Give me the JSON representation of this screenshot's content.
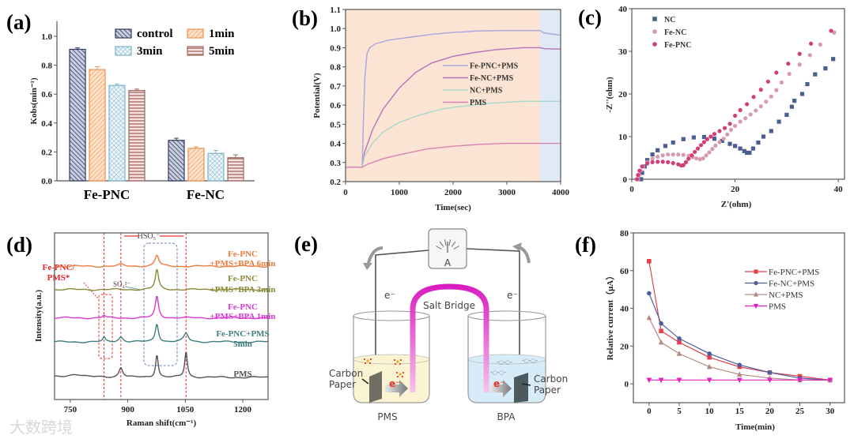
{
  "panel_labels": {
    "a": "(a)",
    "b": "(b)",
    "c": "(c)",
    "d": "(d)",
    "e": "(e)",
    "f": "(f)"
  },
  "watermark": "大数跨境",
  "chart_data": [
    {
      "id": "a",
      "type": "bar",
      "ylabel": "Kobs(min⁻¹)",
      "xlabel": "",
      "categories": [
        "Fe-PNC",
        "Fe-NC"
      ],
      "ylim": [
        0,
        1.1
      ],
      "yticks": [
        0.0,
        0.2,
        0.4,
        0.6,
        0.8,
        1.0
      ],
      "legend": "top-right",
      "series": [
        {
          "name": "control",
          "values": [
            0.91,
            0.28
          ],
          "errors": [
            0.01,
            0.015
          ],
          "color": "#2e3a5c",
          "pattern": "hatch-control"
        },
        {
          "name": "1min",
          "values": [
            0.77,
            0.225
          ],
          "errors": [
            0.02,
            0.01
          ],
          "color": "#ee9350",
          "pattern": "hatch-1min"
        },
        {
          "name": "3min",
          "values": [
            0.66,
            0.19
          ],
          "errors": [
            0.01,
            0.02
          ],
          "color": "#7fb3c9",
          "pattern": "hatch-3min"
        },
        {
          "name": "5min",
          "values": [
            0.625,
            0.16
          ],
          "errors": [
            0.01,
            0.02
          ],
          "color": "#a4665e",
          "pattern": "hatch-5min"
        }
      ]
    },
    {
      "id": "b",
      "type": "line",
      "xlabel": "Time(sec)",
      "ylabel": "Potential(V)",
      "xlim": [
        0,
        4000
      ],
      "ylim": [
        0.2,
        1.1
      ],
      "xticks": [
        0,
        1000,
        2000,
        3000,
        4000
      ],
      "yticks": [
        0.2,
        0.3,
        0.4,
        0.5,
        0.6,
        0.7,
        0.8,
        0.9,
        1.0,
        1.1
      ],
      "legend": "center-right",
      "shaded_regions": [
        {
          "from": 0,
          "to": 3620,
          "color": "#fbe4d4"
        },
        {
          "from": 3620,
          "to": 4000,
          "color": "#dfeaf6"
        }
      ],
      "series": [
        {
          "name": "Fe-PNC+PMS",
          "color": "#a9a4de",
          "points": [
            [
              0,
              0.275
            ],
            [
              310,
              0.275
            ],
            [
              330,
              0.5
            ],
            [
              360,
              0.75
            ],
            [
              400,
              0.87
            ],
            [
              450,
              0.9
            ],
            [
              550,
              0.92
            ],
            [
              800,
              0.94
            ],
            [
              1200,
              0.955
            ],
            [
              1600,
              0.97
            ],
            [
              2000,
              0.98
            ],
            [
              2500,
              0.988
            ],
            [
              3000,
              0.99
            ],
            [
              3620,
              0.99
            ],
            [
              3680,
              0.978
            ],
            [
              4000,
              0.965
            ]
          ]
        },
        {
          "name": "Fe-NC+PMS",
          "color": "#b672b9",
          "points": [
            [
              0,
              0.275
            ],
            [
              310,
              0.275
            ],
            [
              350,
              0.35
            ],
            [
              500,
              0.47
            ],
            [
              700,
              0.58
            ],
            [
              1000,
              0.69
            ],
            [
              1300,
              0.77
            ],
            [
              1600,
              0.82
            ],
            [
              2000,
              0.855
            ],
            [
              2400,
              0.875
            ],
            [
              2800,
              0.89
            ],
            [
              3300,
              0.9
            ],
            [
              3620,
              0.9
            ],
            [
              3700,
              0.895
            ],
            [
              4000,
              0.893
            ]
          ]
        },
        {
          "name": "NC+PMS",
          "color": "#a6d8ca",
          "points": [
            [
              0,
              0.275
            ],
            [
              310,
              0.275
            ],
            [
              350,
              0.33
            ],
            [
              500,
              0.4
            ],
            [
              700,
              0.46
            ],
            [
              1000,
              0.51
            ],
            [
              1400,
              0.55
            ],
            [
              1800,
              0.58
            ],
            [
              2200,
              0.595
            ],
            [
              2700,
              0.61
            ],
            [
              3300,
              0.62
            ],
            [
              4000,
              0.62
            ]
          ]
        },
        {
          "name": "PMS",
          "color": "#d882b2",
          "points": [
            [
              0,
              0.275
            ],
            [
              310,
              0.275
            ],
            [
              400,
              0.29
            ],
            [
              700,
              0.32
            ],
            [
              1000,
              0.34
            ],
            [
              1500,
              0.37
            ],
            [
              2000,
              0.385
            ],
            [
              2500,
              0.395
            ],
            [
              3000,
              0.4
            ],
            [
              4000,
              0.4
            ]
          ]
        }
      ]
    },
    {
      "id": "c",
      "type": "scatter",
      "xlabel": "Z'(ohm)",
      "ylabel": "-Z''(ohm)",
      "xlim": [
        0,
        41.2
      ],
      "ylim": [
        0,
        40
      ],
      "xticks": [
        0,
        20,
        40
      ],
      "yticks": [
        0,
        10,
        20,
        30,
        40
      ],
      "legend": "top-left",
      "series": [
        {
          "name": "NC",
          "marker": "square",
          "color": "#4b5e90",
          "points": [
            [
              1.8,
              0
            ],
            [
              2,
              1.5
            ],
            [
              2.5,
              3
            ],
            [
              3,
              4.5
            ],
            [
              4,
              5.8
            ],
            [
              5,
              6.8
            ],
            [
              6.5,
              7.8
            ],
            [
              8,
              8.6
            ],
            [
              10,
              9.4
            ],
            [
              12,
              9.8
            ],
            [
              14,
              9.9
            ],
            [
              16,
              9.5
            ],
            [
              17.5,
              9
            ],
            [
              19,
              8.3
            ],
            [
              20,
              7.8
            ],
            [
              21,
              7.2
            ],
            [
              21.8,
              6.6
            ],
            [
              22.3,
              6.2
            ],
            [
              22.8,
              6.2
            ],
            [
              23.5,
              7.2
            ],
            [
              24.5,
              8.6
            ],
            [
              25.5,
              10
            ],
            [
              27,
              11.3
            ],
            [
              28.5,
              13.5
            ],
            [
              30,
              15.1
            ],
            [
              31,
              17
            ],
            [
              31.5,
              18.4
            ],
            [
              33,
              20
            ],
            [
              34,
              22.3
            ],
            [
              35.5,
              24.6
            ],
            [
              37.5,
              26
            ],
            [
              39,
              28.2
            ]
          ]
        },
        {
          "name": "Fe-NC",
          "marker": "circle",
          "color": "#d99aae",
          "points": [
            [
              1.2,
              0
            ],
            [
              1.4,
              1
            ],
            [
              1.7,
              2
            ],
            [
              2.2,
              3
            ],
            [
              3,
              4
            ],
            [
              4,
              4.8
            ],
            [
              5,
              5.3
            ],
            [
              6,
              5.6
            ],
            [
              7,
              5.8
            ],
            [
              8,
              5.8
            ],
            [
              9,
              5.8
            ],
            [
              10,
              5.7
            ],
            [
              11,
              5.5
            ],
            [
              11.8,
              5.2
            ],
            [
              12.5,
              4.9
            ],
            [
              13.2,
              4.7
            ],
            [
              13.8,
              4.9
            ],
            [
              14.4,
              5.6
            ],
            [
              15,
              6.3
            ],
            [
              15.6,
              7.1
            ],
            [
              16.2,
              7.9
            ],
            [
              17,
              8.7
            ],
            [
              17.8,
              9.5
            ],
            [
              18.5,
              10.5
            ],
            [
              19.2,
              11.6
            ],
            [
              20,
              12.5
            ],
            [
              21,
              13.5
            ],
            [
              22,
              14.3
            ],
            [
              23,
              15.2
            ],
            [
              24,
              16.1
            ],
            [
              25,
              17.1
            ],
            [
              26,
              18.2
            ],
            [
              27,
              19.4
            ],
            [
              28,
              20.9
            ],
            [
              29,
              22.7
            ],
            [
              30.5,
              24.7
            ],
            [
              32.5,
              26.9
            ],
            [
              34.5,
              29.1
            ],
            [
              36.5,
              31.6
            ],
            [
              39.2,
              34.4
            ]
          ]
        },
        {
          "name": "Fe-PNC",
          "marker": "circle",
          "color": "#d23f78",
          "points": [
            [
              1,
              0
            ],
            [
              1.2,
              1
            ],
            [
              1.5,
              2
            ],
            [
              2,
              3
            ],
            [
              3,
              3.7
            ],
            [
              4,
              4
            ],
            [
              5,
              4.1
            ],
            [
              6,
              4.1
            ],
            [
              7,
              4
            ],
            [
              8,
              3.8
            ],
            [
              9,
              3.5
            ],
            [
              9.6,
              3.2
            ],
            [
              10,
              3.3
            ],
            [
              10.5,
              4
            ],
            [
              11,
              4.8
            ],
            [
              11.6,
              5.6
            ],
            [
              12.2,
              6.4
            ],
            [
              12.8,
              7.2
            ],
            [
              13.4,
              8
            ],
            [
              14,
              8.7
            ],
            [
              14.6,
              9.4
            ],
            [
              15.3,
              10
            ],
            [
              16,
              10.6
            ],
            [
              17,
              11.3
            ],
            [
              18,
              12
            ],
            [
              19,
              13
            ],
            [
              20,
              14.9
            ],
            [
              21,
              16.2
            ],
            [
              22.3,
              17.6
            ],
            [
              23.6,
              19.3
            ],
            [
              25,
              21
            ],
            [
              26.4,
              22.9
            ],
            [
              28,
              25
            ],
            [
              30.3,
              27.1
            ],
            [
              32.5,
              29.4
            ],
            [
              34.7,
              31.8
            ],
            [
              38.6,
              34.8
            ]
          ]
        }
      ]
    },
    {
      "id": "d",
      "type": "line",
      "xlabel": "Raman shift(cm⁻¹)",
      "ylabel": "Intensity(a.u.)",
      "xlim": [
        709,
        1266
      ],
      "ylim": [
        0,
        100
      ],
      "xticks": [
        750,
        900,
        1050,
        1200
      ],
      "reference_lines": [
        838,
        882,
        1052
      ],
      "annotations": {
        "hso5": "HSO₅⁻",
        "so4": "SO₄²⁻",
        "intermediate": [
          "Fe-PNC/",
          "PMS*"
        ]
      },
      "series": [
        {
          "label": [
            "Fe-PNC",
            "+PMS+BPA 6min"
          ],
          "color": "#ee7b3c",
          "offset": 80,
          "peaks": [
            [
              882,
              1,
              8
            ],
            [
              976,
              6.6,
              6
            ]
          ]
        },
        {
          "label": [
            "Fe-PNC",
            "+PMS+BPA 3min"
          ],
          "color": "#8a8a38",
          "offset": 66,
          "peaks": [
            [
              976,
              12,
              5
            ]
          ]
        },
        {
          "label": [
            "Fe-PNC",
            "+PMS+BPA 1min"
          ],
          "color": "#d93ad6",
          "offset": 49,
          "peaks": [
            [
              838,
              1.5,
              4
            ],
            [
              976,
              13,
              5
            ]
          ]
        },
        {
          "label": [
            "Fe-PNC+PMS",
            "5min"
          ],
          "color": "#3d7d7d",
          "offset": 34.6,
          "peaks": [
            [
              838,
              2.5,
              4
            ],
            [
              882,
              3,
              7
            ],
            [
              976,
              11,
              5
            ],
            [
              1052,
              5,
              7
            ]
          ]
        },
        {
          "label": [
            "PMS"
          ],
          "color": "#555555",
          "offset": 13.3,
          "peaks": [
            [
              764,
              2,
              22
            ],
            [
              882,
              6,
              6
            ],
            [
              976,
              14,
              4
            ],
            [
              1052,
              15.6,
              4
            ]
          ]
        }
      ]
    },
    {
      "id": "f",
      "type": "line",
      "xlabel": "Time(min)",
      "ylabel": "Relative current（μA）",
      "xlim": [
        -2.6,
        32.4
      ],
      "ylim": [
        -10,
        80
      ],
      "xticks": [
        0,
        5,
        10,
        15,
        20,
        25,
        30
      ],
      "yticks": [
        0,
        20,
        40,
        60,
        80
      ],
      "x": [
        0,
        2,
        5,
        10,
        15,
        20,
        25,
        30
      ],
      "legend": "top-right",
      "series": [
        {
          "name": "Fe-PNC+PMS",
          "marker": "square",
          "color": "#e6404c",
          "values": [
            65,
            28,
            22,
            14,
            9,
            6,
            4,
            2
          ]
        },
        {
          "name": "Fe-NC+PMS",
          "marker": "circle",
          "color": "#4a5e9e",
          "values": [
            48,
            32,
            24,
            16,
            10,
            6,
            3,
            2
          ]
        },
        {
          "name": "NC+PMS",
          "marker": "triangle-up",
          "color": "#b58a82",
          "values": [
            35,
            22,
            16,
            9,
            5,
            3,
            2,
            2
          ]
        },
        {
          "name": "PMS",
          "marker": "triangle-down",
          "color": "#e020c4",
          "values": [
            2,
            2,
            2,
            2,
            2,
            2,
            2,
            2
          ]
        }
      ]
    }
  ],
  "diagram_e": {
    "ammeter": "A",
    "salt_bridge": "Salt Bridge",
    "electron": "e⁻",
    "left_electrode": [
      "Carbon",
      "Paper"
    ],
    "right_electrode": [
      "Carbon",
      "Paper"
    ],
    "left_solution": "PMS",
    "right_solution": "BPA"
  }
}
